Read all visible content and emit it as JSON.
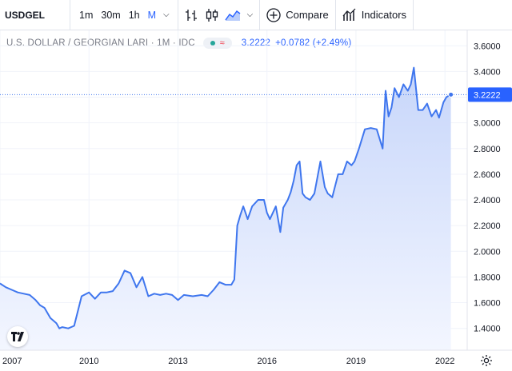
{
  "toolbar": {
    "symbol": "USDGEL",
    "timeframes": [
      "1m",
      "30m",
      "1h",
      "M"
    ],
    "active_timeframe": "M",
    "compare_label": "Compare",
    "indicators_label": "Indicators"
  },
  "legend": {
    "title": "U.S. DOLLAR / GEORGIAN LARI · 1M · IDC",
    "status_icon": "≈",
    "last": "3.2222",
    "change": "+0.0782 (+2.49%)"
  },
  "colors": {
    "line": "#3f76ee",
    "area_top": "#c7d6fa",
    "area_bottom": "#f3f6ff",
    "grid": "#f0f3fa",
    "accent": "#2962ff"
  },
  "chart_data": {
    "type": "area",
    "title": "U.S. DOLLAR / GEORGIAN LARI",
    "xlabel": "",
    "ylabel": "",
    "xlim": [
      2007.0,
      2022.75
    ],
    "ylim": [
      1.23,
      3.72
    ],
    "grid": true,
    "x_ticks": [
      "2007",
      "2010",
      "2013",
      "2016",
      "2019",
      "2022"
    ],
    "x_tick_values": [
      2007,
      2010,
      2013,
      2016,
      2019,
      2022
    ],
    "y_ticks": [
      "3.6000",
      "3.4000",
      "3.2000",
      "3.0000",
      "2.8000",
      "2.6000",
      "2.4000",
      "2.2000",
      "2.0000",
      "1.8000",
      "1.6000",
      "1.4000"
    ],
    "y_tick_values": [
      3.6,
      3.4,
      3.2,
      3.0,
      2.8,
      2.6,
      2.4,
      2.2,
      2.0,
      1.8,
      1.6,
      1.4
    ],
    "last_value": "3.2222",
    "series": [
      {
        "x": [
          2007.0,
          2007.2,
          2007.4,
          2007.6,
          2007.8,
          2008.0,
          2008.2,
          2008.35,
          2008.5,
          2008.7,
          2008.9,
          2009.0,
          2009.1,
          2009.3,
          2009.5,
          2009.75,
          2010.0,
          2010.2,
          2010.4,
          2010.6,
          2010.8,
          2011.0,
          2011.2,
          2011.4,
          2011.6,
          2011.8,
          2012.0,
          2012.2,
          2012.4,
          2012.6,
          2012.8,
          2013.0,
          2013.2,
          2013.5,
          2013.8,
          2014.0,
          2014.2,
          2014.4,
          2014.6,
          2014.8,
          2014.9,
          2015.0,
          2015.1,
          2015.2,
          2015.35,
          2015.5,
          2015.7,
          2015.9,
          2016.0,
          2016.1,
          2016.3,
          2016.45,
          2016.55,
          2016.7,
          2016.8,
          2016.9,
          2017.0,
          2017.1,
          2017.2,
          2017.3,
          2017.45,
          2017.6,
          2017.8,
          2017.95,
          2018.05,
          2018.2,
          2018.4,
          2018.55,
          2018.7,
          2018.85,
          2018.95,
          2019.1,
          2019.3,
          2019.5,
          2019.7,
          2019.9,
          2020.0,
          2020.1,
          2020.2,
          2020.3,
          2020.45,
          2020.6,
          2020.75,
          2020.85,
          2020.95,
          2021.1,
          2021.2,
          2021.25,
          2021.4,
          2021.55,
          2021.7,
          2021.8,
          2021.95,
          2022.05,
          2022.2
        ],
        "y": [
          1.75,
          1.72,
          1.7,
          1.68,
          1.67,
          1.66,
          1.62,
          1.58,
          1.56,
          1.48,
          1.44,
          1.4,
          1.41,
          1.4,
          1.42,
          1.65,
          1.68,
          1.63,
          1.68,
          1.68,
          1.69,
          1.75,
          1.85,
          1.83,
          1.72,
          1.8,
          1.65,
          1.67,
          1.66,
          1.67,
          1.66,
          1.62,
          1.66,
          1.65,
          1.66,
          1.65,
          1.7,
          1.76,
          1.74,
          1.74,
          1.78,
          2.2,
          2.28,
          2.35,
          2.25,
          2.35,
          2.4,
          2.4,
          2.3,
          2.25,
          2.35,
          2.15,
          2.34,
          2.4,
          2.46,
          2.55,
          2.67,
          2.7,
          2.45,
          2.42,
          2.4,
          2.45,
          2.7,
          2.5,
          2.45,
          2.42,
          2.6,
          2.6,
          2.7,
          2.67,
          2.7,
          2.8,
          2.95,
          2.96,
          2.95,
          2.8,
          3.25,
          3.05,
          3.12,
          3.27,
          3.2,
          3.3,
          3.25,
          3.3,
          3.43,
          3.1,
          3.1,
          3.1,
          3.15,
          3.05,
          3.1,
          3.04,
          3.16,
          3.2,
          3.22
        ]
      }
    ]
  }
}
